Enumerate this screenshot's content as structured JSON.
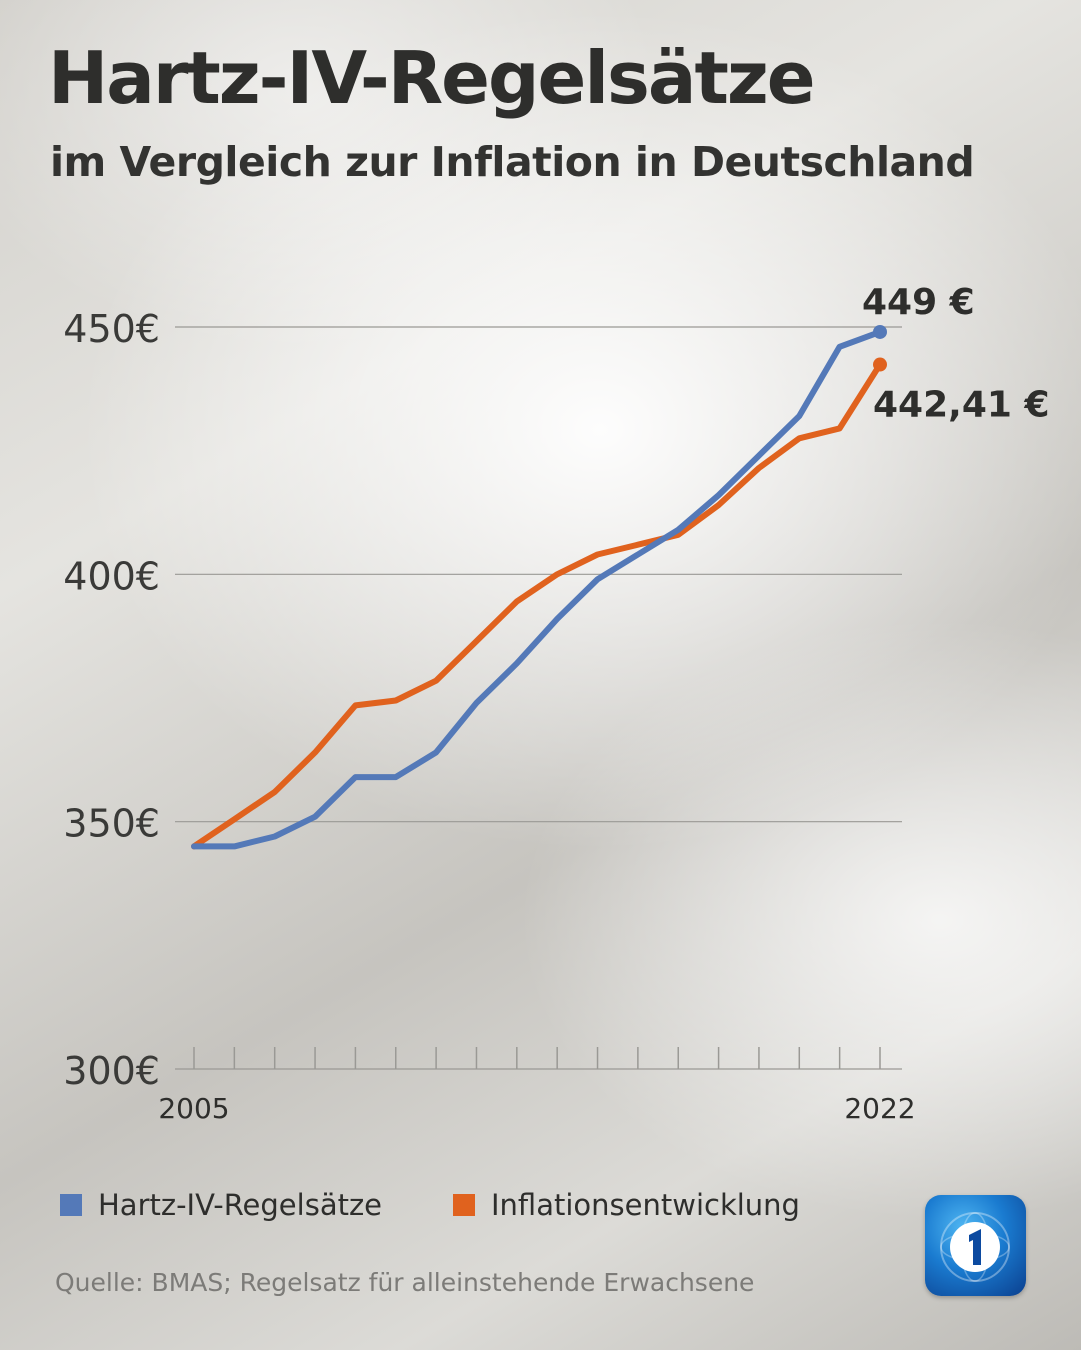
{
  "title": "Hartz-IV-Regelsätze",
  "subtitle": "im Vergleich zur Inflation in Deutschland",
  "legend": {
    "hartz": "Hartz-IV-Regelsätze",
    "inflation": "Inflationsentwicklung"
  },
  "source": "Quelle: BMAS; Regelsatz für alleinstehende Erwachsene",
  "colors": {
    "hartz": "#5479b8",
    "inflation": "#e0621e",
    "text": "#2e2e2c",
    "grid": "#9a9995"
  },
  "chart_data": {
    "type": "line",
    "title": "Hartz-IV-Regelsätze",
    "subtitle": "im Vergleich zur Inflation in Deutschland",
    "x": [
      2005,
      2006,
      2007,
      2008,
      2009,
      2010,
      2011,
      2012,
      2013,
      2014,
      2015,
      2016,
      2017,
      2018,
      2019,
      2020,
      2021,
      2022
    ],
    "x_tick_labels": [
      "2005",
      "2022"
    ],
    "y_tick_labels": [
      "300€",
      "350€",
      "400€",
      "450€"
    ],
    "y_ticks": [
      300,
      350,
      400,
      450
    ],
    "ylim": [
      300,
      450
    ],
    "series": [
      {
        "name": "Hartz-IV-Regelsätze",
        "color": "#5479b8",
        "values": [
          345,
          345,
          347,
          351,
          359,
          359,
          364,
          374,
          382,
          391,
          399,
          404,
          409,
          416,
          424,
          432,
          446,
          449
        ],
        "end_label": "449 €"
      },
      {
        "name": "Inflationsentwicklung",
        "color": "#e0621e",
        "values": [
          345,
          350.5,
          356,
          364,
          373.5,
          374.5,
          378.5,
          386.5,
          394.5,
          400,
          404,
          406,
          408,
          414,
          421.5,
          427.5,
          429.5,
          442.41
        ],
        "end_label": "442,41 €"
      }
    ]
  }
}
